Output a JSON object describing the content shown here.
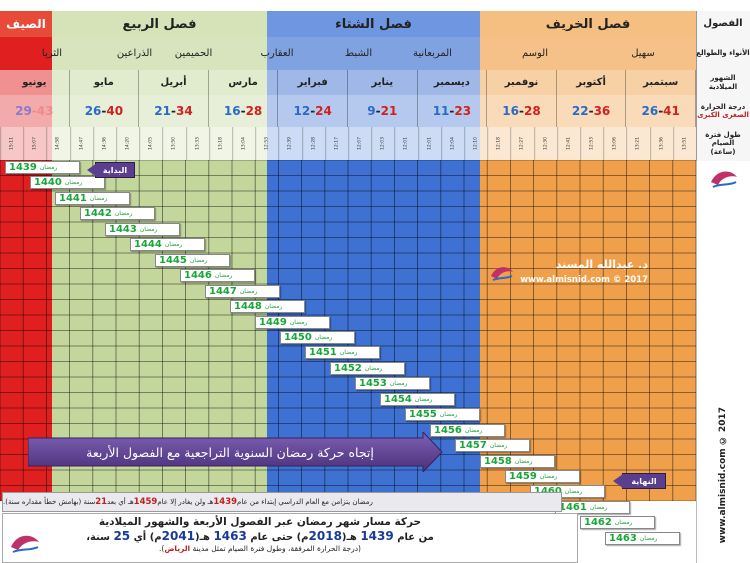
{
  "header": {
    "row_label_seasons": "الفصول",
    "row_label_anwaa": "الأنواء والطوالع",
    "row_label_months": "الشهور الميلادية",
    "row_label_temp_line1": "درجة الحرارة",
    "row_label_temp_line2": "الصغرى الكبرى",
    "row_label_fasting_line1": "طول فترة الصيام",
    "row_label_fasting_line2": "(ساعة)"
  },
  "seasons": [
    {
      "name": "الصيف",
      "color": "#e02020"
    },
    {
      "name": "فصل الربيع",
      "color": "#c3d69b"
    },
    {
      "name": "فصل الشتاء",
      "color": "#3e71d1"
    },
    {
      "name": "فصل الخريف",
      "color": "#f0a04b"
    }
  ],
  "anwaa": [
    "سهيل",
    "الوسم",
    "المربعانية",
    "الشبط",
    "العقارب",
    "الحميمين",
    "الذراعين",
    "الثريا"
  ],
  "months": [
    {
      "name": "سبتمبر",
      "min": "26",
      "max": "41"
    },
    {
      "name": "أكتوبر",
      "min": "22",
      "max": "36"
    },
    {
      "name": "نوفمبر",
      "min": "16",
      "max": "28"
    },
    {
      "name": "ديسمبر",
      "min": "11",
      "max": "23"
    },
    {
      "name": "يناير",
      "min": "9",
      "max": "21"
    },
    {
      "name": "فبراير",
      "min": "12",
      "max": "24"
    },
    {
      "name": "مارس",
      "min": "16",
      "max": "28"
    },
    {
      "name": "أبريل",
      "min": "21",
      "max": "34"
    },
    {
      "name": "مايو",
      "min": "26",
      "max": "40"
    },
    {
      "name": "يونيو",
      "min": "29",
      "max": "43"
    }
  ],
  "times": [
    "13:51",
    "13:36",
    "13:21",
    "13:06",
    "12:53",
    "12:41",
    "12:30",
    "12:27",
    "12:18",
    "12:10",
    "12:04",
    "12:01",
    "12:01",
    "12:03",
    "12:07",
    "12:17",
    "12:28",
    "12:39",
    "12:53",
    "13:04",
    "13:18",
    "13:33",
    "13:50",
    "14:05",
    "14:20",
    "14:36",
    "14:47",
    "14:58",
    "15:07",
    "15:11"
  ],
  "ramadan_word": "رمضان",
  "ramadan_years": [
    "1439",
    "1440",
    "1441",
    "1442",
    "1443",
    "1444",
    "1445",
    "1446",
    "1447",
    "1448",
    "1449",
    "1450",
    "1451",
    "1452",
    "1453",
    "1454",
    "1455",
    "1456",
    "1457",
    "1458",
    "1459",
    "1460",
    "1461",
    "1462",
    "1463"
  ],
  "start_label": "البداية",
  "end_label": "النهاية",
  "arrow_text": "إتجاه حركة رمضان السنوية التراجعية مع الفصول الأربعة",
  "watermark": {
    "author": "د. عبدالله المسند",
    "site": "www.almisnid.com  © 2017"
  },
  "side_credit": "www.almisnid.com  © 2017",
  "note": {
    "prefix": "رمضان يتزامن مع العام الدراسي إبتداء من عام ",
    "year1": "1439",
    "mid1": " هـ ولن يغادر إلا عام ",
    "year2": "1459",
    "mid2": " هـ أي بعد ",
    "n": "21",
    "suffix": " سنة (بهامش خطأ مقداره سنة)."
  },
  "caption": {
    "line1": "حركة مسار شهر رمضان عبر الفصول الأربعة والشهور الميلادية",
    "line2_a": "من عام ",
    "line2_y1": "1439",
    "line2_b": " هـ(",
    "line2_y2": "2018",
    "line2_c": "م) حتى عام ",
    "line2_y3": "1463",
    "line2_d": " هـ(",
    "line2_y4": "2041",
    "line2_e": "م) أي ",
    "line2_n": "25",
    "line2_f": " سنة،",
    "line3_a": "(درجة الحرارة المرفقة، وطول فترة الصيام تمثل مدينة ",
    "line3_city": "الرياض",
    "line3_b": ").",
    "accent": "#1a3a9a"
  }
}
